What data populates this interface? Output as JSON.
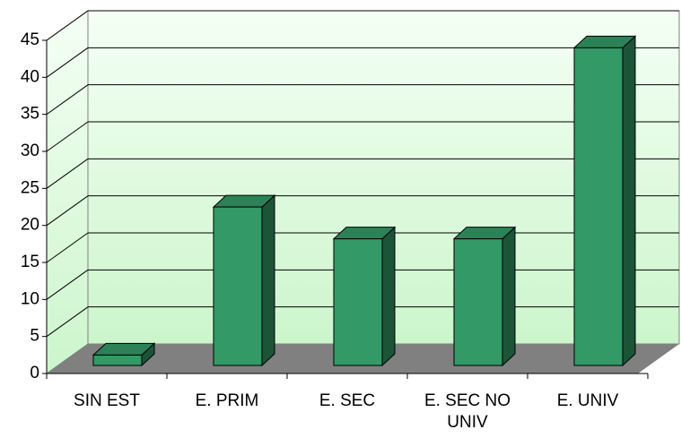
{
  "chart_data": {
    "type": "bar",
    "categories": [
      "SIN EST",
      "E. PRIM",
      "E. SEC",
      "E. SEC NO UNIV",
      "E. UNIV"
    ],
    "values": [
      1.4,
      21.4,
      17.1,
      17.1,
      42.9
    ],
    "color": "#339966",
    "ylim": [
      0,
      45
    ],
    "yticks": [
      0,
      5,
      10,
      15,
      20,
      25,
      30,
      35,
      40,
      45
    ],
    "grid": true
  }
}
